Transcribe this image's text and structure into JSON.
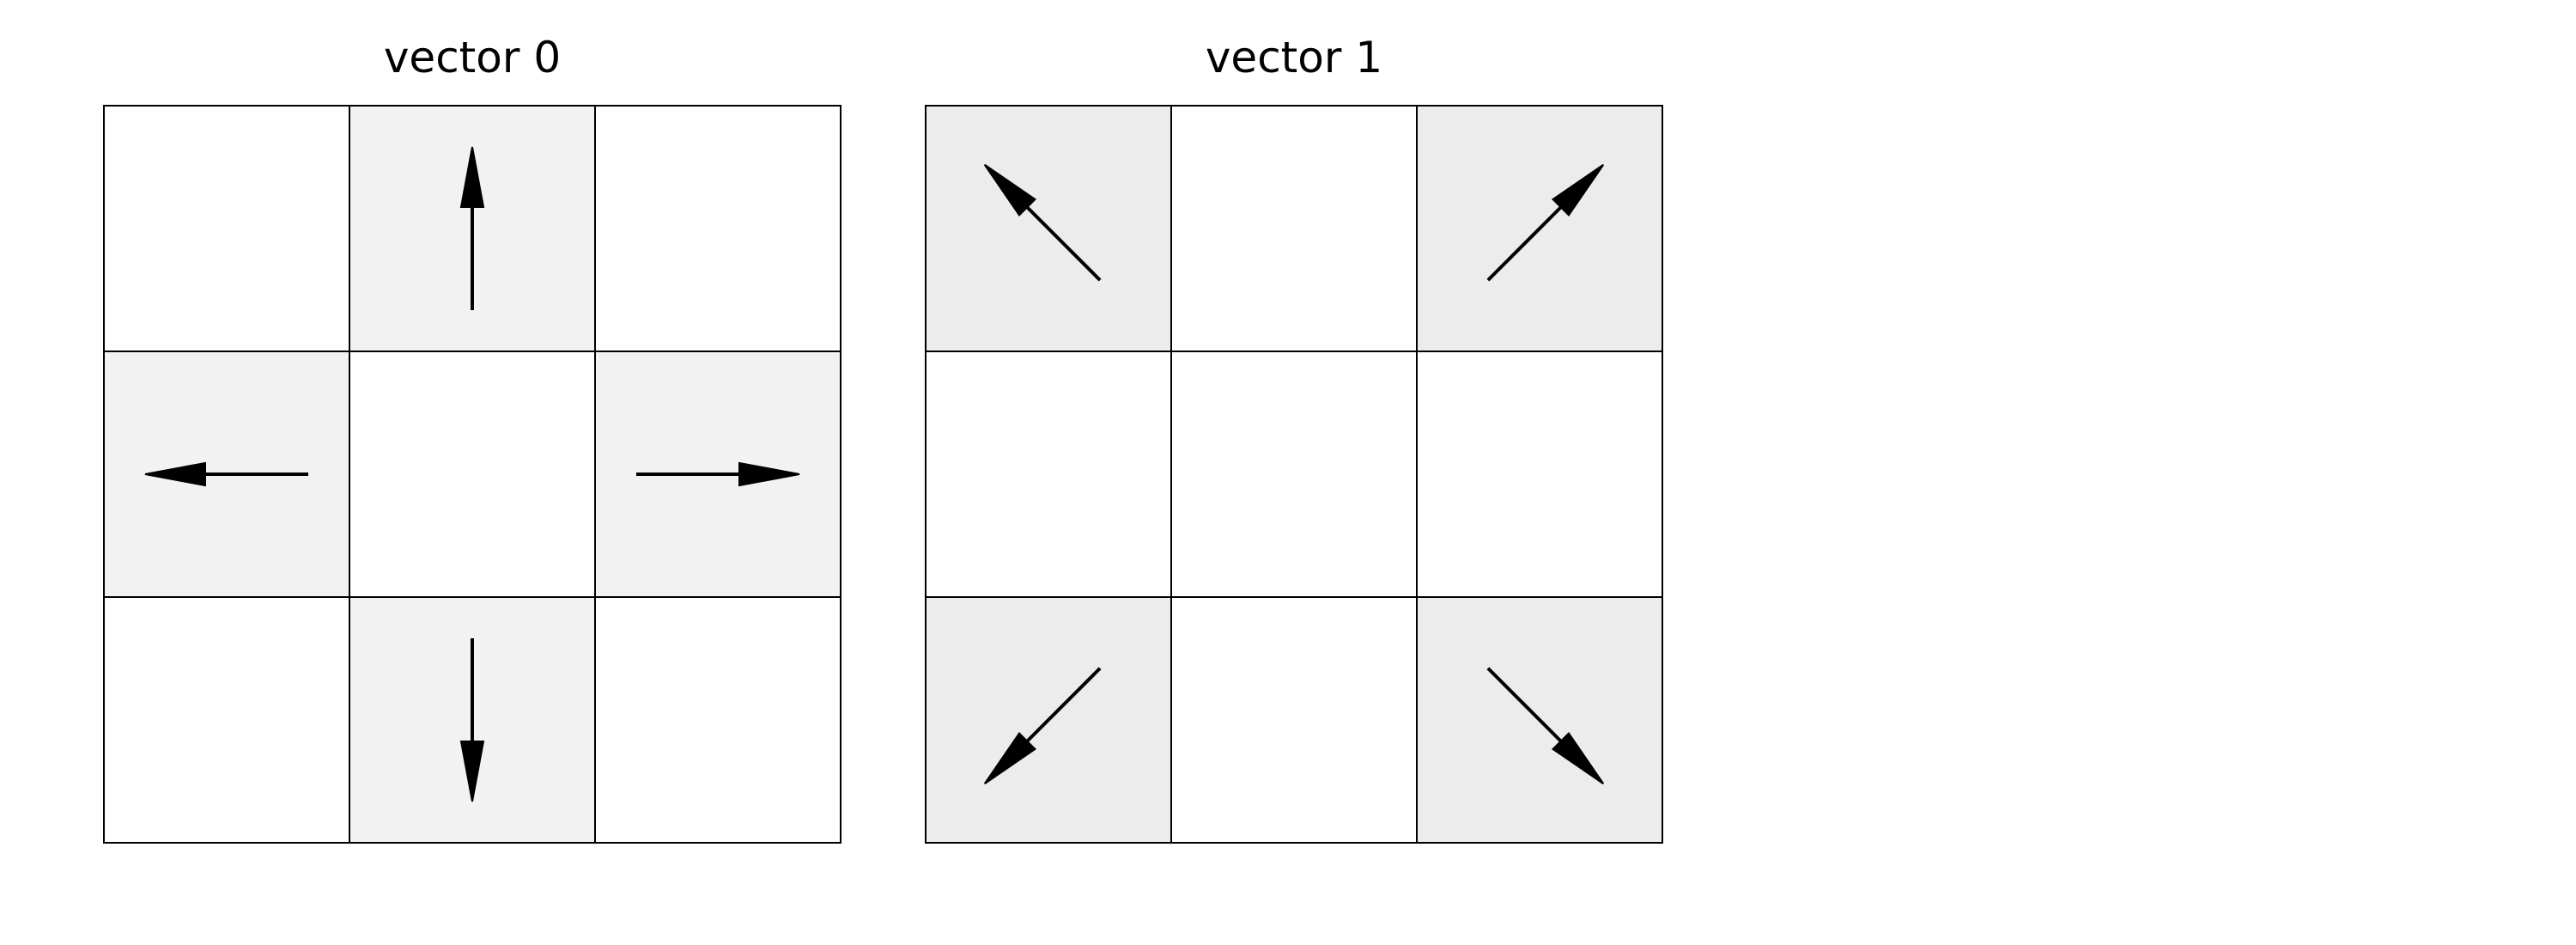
{
  "colors": {
    "shaded_cell_vector0": "#f2f2f2",
    "shaded_cell_vector1": "#ececec",
    "plain_cell": "#ffffff",
    "grid_line": "#000000",
    "arrow": "#000000"
  },
  "panels": [
    {
      "title": "vector 0",
      "cells": [
        {
          "row": 0,
          "col": 0,
          "shaded": false,
          "arrow": null
        },
        {
          "row": 0,
          "col": 1,
          "shaded": true,
          "arrow": "up"
        },
        {
          "row": 0,
          "col": 2,
          "shaded": false,
          "arrow": null
        },
        {
          "row": 1,
          "col": 0,
          "shaded": true,
          "arrow": "left"
        },
        {
          "row": 1,
          "col": 1,
          "shaded": false,
          "arrow": null
        },
        {
          "row": 1,
          "col": 2,
          "shaded": true,
          "arrow": "right"
        },
        {
          "row": 2,
          "col": 0,
          "shaded": false,
          "arrow": null
        },
        {
          "row": 2,
          "col": 1,
          "shaded": true,
          "arrow": "down"
        },
        {
          "row": 2,
          "col": 2,
          "shaded": false,
          "arrow": null
        }
      ]
    },
    {
      "title": "vector 1",
      "cells": [
        {
          "row": 0,
          "col": 0,
          "shaded": true,
          "arrow": "up-left"
        },
        {
          "row": 0,
          "col": 1,
          "shaded": false,
          "arrow": null
        },
        {
          "row": 0,
          "col": 2,
          "shaded": true,
          "arrow": "up-right"
        },
        {
          "row": 1,
          "col": 0,
          "shaded": false,
          "arrow": null
        },
        {
          "row": 1,
          "col": 1,
          "shaded": false,
          "arrow": null
        },
        {
          "row": 1,
          "col": 2,
          "shaded": false,
          "arrow": null
        },
        {
          "row": 2,
          "col": 0,
          "shaded": true,
          "arrow": "down-left"
        },
        {
          "row": 2,
          "col": 1,
          "shaded": false,
          "arrow": null
        },
        {
          "row": 2,
          "col": 2,
          "shaded": true,
          "arrow": "down-right"
        }
      ]
    }
  ]
}
